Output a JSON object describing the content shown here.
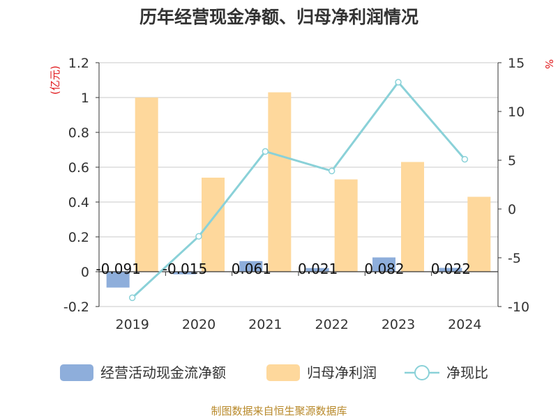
{
  "chart_data": {
    "type": "bar",
    "title": "历年经营现金净额、归母净利润情况",
    "left_unit": "(亿元)",
    "right_unit": "%",
    "categories": [
      "2019",
      "2020",
      "2021",
      "2022",
      "2023",
      "2024"
    ],
    "series": [
      {
        "name": "经营活动现金流净额",
        "type": "bar",
        "axis": "left",
        "color": "#8eaedb",
        "values": [
          -0.091,
          -0.015,
          0.061,
          0.021,
          0.082,
          0.022
        ],
        "labels": [
          "-0.091",
          "-0.015",
          "0.061",
          "0.021",
          "0.082",
          "0.022"
        ]
      },
      {
        "name": "归母净利润",
        "type": "bar",
        "axis": "left",
        "color": "#fed89c",
        "values": [
          1.0,
          0.54,
          1.03,
          0.53,
          0.63,
          0.43
        ]
      },
      {
        "name": "净现比",
        "type": "line",
        "axis": "right",
        "color": "#8ad1d8",
        "values": [
          -9.1,
          -2.8,
          5.9,
          3.9,
          13.0,
          5.1
        ]
      }
    ],
    "ylim_left": [
      -0.2,
      1.2
    ],
    "yticks_left": [
      "1.2",
      "1",
      "0.8",
      "0.6",
      "0.4",
      "0.2",
      "0",
      "-0.2"
    ],
    "ylim_right": [
      -10,
      15
    ],
    "yticks_right": [
      "15",
      "10",
      "5",
      "0",
      "-5",
      "-10"
    ],
    "grid": true,
    "legend_position": "bottom"
  },
  "source": "制图数据来自恒生聚源数据库"
}
